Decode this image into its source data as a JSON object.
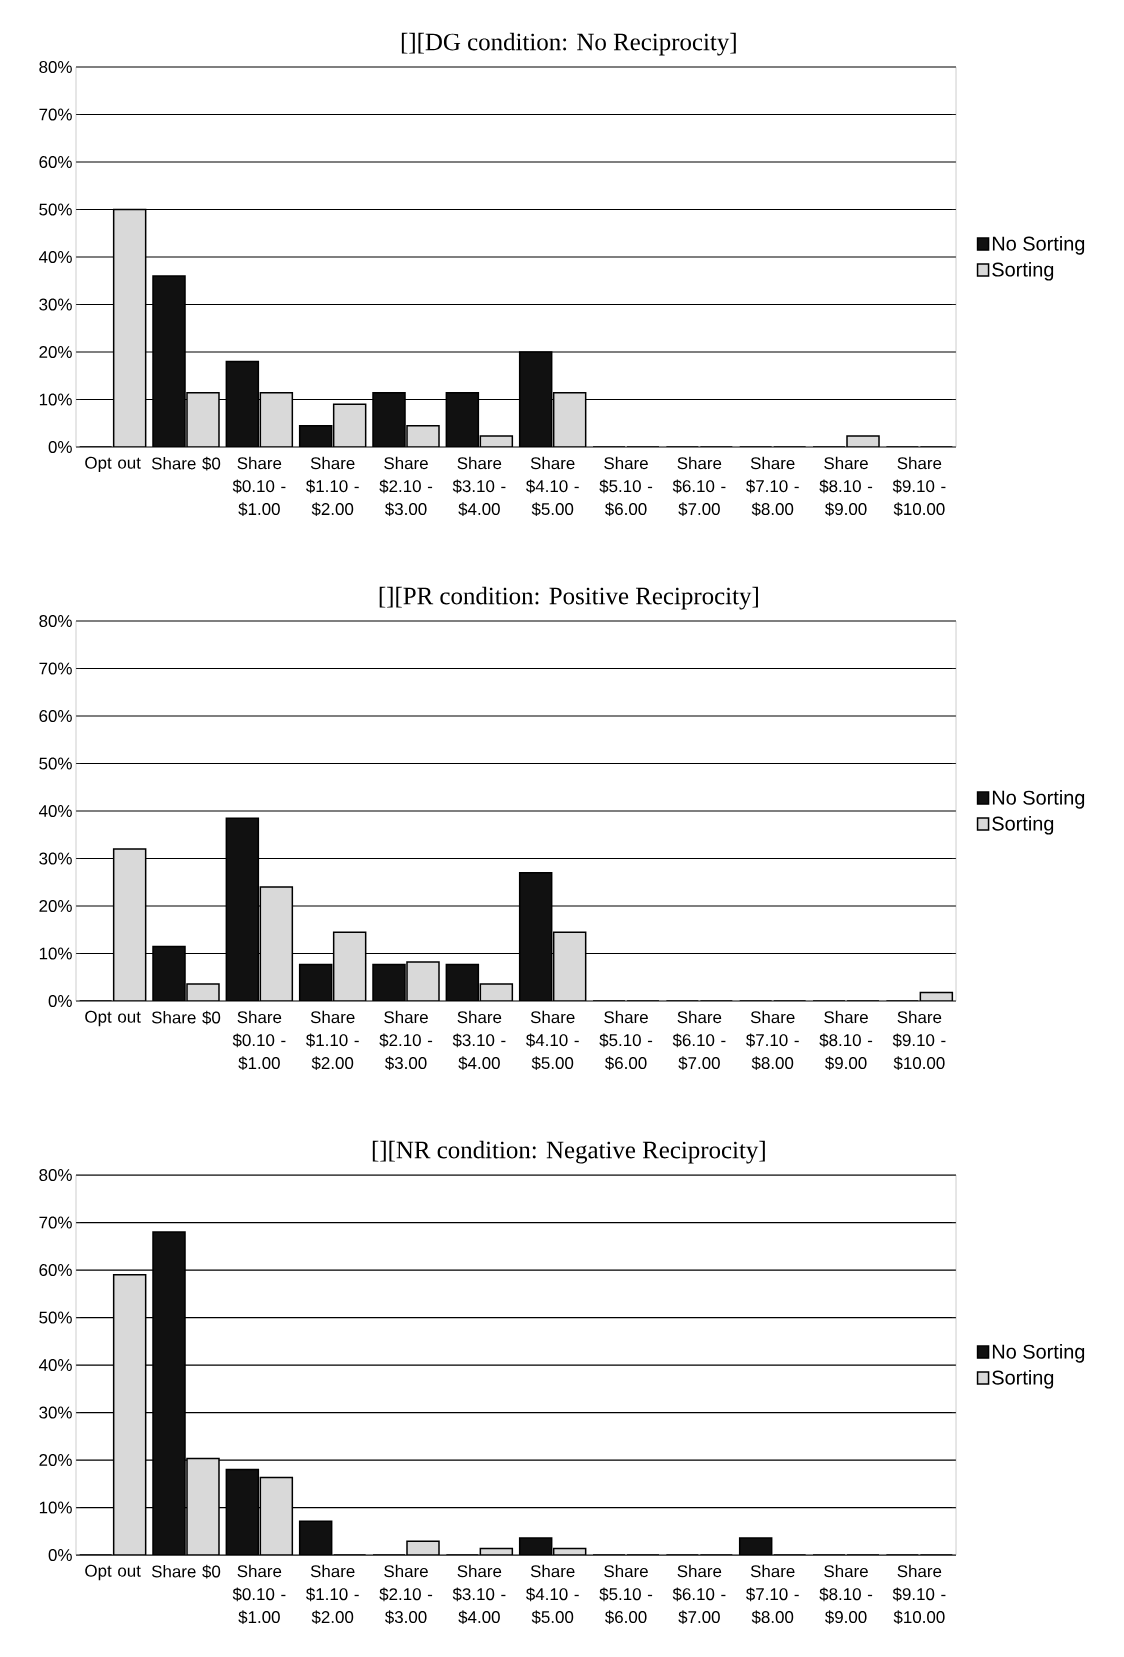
{
  "chart_data": [
    {
      "type": "bar",
      "title": "[][DG condition: No Reciprocity]",
      "categories": [
        "Opt out",
        "Share $0",
        "Share $0.10 - $1.00",
        "Share $1.10 - $2.00",
        "Share $2.10 - $3.00",
        "Share $3.10 - $4.00",
        "Share $4.10 - $5.00",
        "Share $5.10 - $6.00",
        "Share $6.10 - $7.00",
        "Share $7.10 - $8.00",
        "Share $8.10 - $9.00",
        "Share $9.10 - $10.00"
      ],
      "series": [
        {
          "name": "No Sorting",
          "color": "#111111",
          "values": [
            0,
            36,
            18,
            4.5,
            11.4,
            11.4,
            20,
            0,
            0,
            0,
            0,
            0
          ]
        },
        {
          "name": "Sorting",
          "color": "#d9d9d9",
          "values": [
            50,
            11.4,
            11.4,
            9,
            4.5,
            2.3,
            11.4,
            0,
            0,
            0,
            2.3,
            0
          ]
        }
      ],
      "ylim": [
        0,
        80
      ],
      "yticks": [
        {
          "value": 0,
          "label": "0%"
        },
        {
          "value": 10,
          "label": "10%"
        },
        {
          "value": 20,
          "label": "20%"
        },
        {
          "value": 30,
          "label": "30%"
        },
        {
          "value": 40,
          "label": "40%"
        },
        {
          "value": 50,
          "label": "50%"
        },
        {
          "value": 60,
          "label": "60%"
        },
        {
          "value": 70,
          "label": "70%"
        },
        {
          "value": 80,
          "label": "80%"
        }
      ],
      "grid": "y",
      "legend": "right"
    },
    {
      "type": "bar",
      "title": "[][PR condition: Positive Reciprocity]",
      "categories": [
        "Opt out",
        "Share $0",
        "Share $0.10 - $1.00",
        "Share $1.10 - $2.00",
        "Share $2.10 - $3.00",
        "Share $3.10 - $4.00",
        "Share $4.10 - $5.00",
        "Share $5.10 - $6.00",
        "Share $6.10 - $7.00",
        "Share $7.10 - $8.00",
        "Share $8.10 - $9.00",
        "Share $9.10 - $10.00"
      ],
      "series": [
        {
          "name": "No Sorting",
          "color": "#111111",
          "values": [
            0,
            11.5,
            38.5,
            7.7,
            7.7,
            7.7,
            27,
            0,
            0,
            0,
            0,
            0
          ]
        },
        {
          "name": "Sorting",
          "color": "#d9d9d9",
          "values": [
            32,
            3.6,
            24,
            14.5,
            8.2,
            3.6,
            14.5,
            0,
            0,
            0,
            0,
            1.8
          ]
        }
      ],
      "ylim": [
        0,
        80
      ],
      "yticks": [
        {
          "value": 0,
          "label": "0%"
        },
        {
          "value": 10,
          "label": "10%"
        },
        {
          "value": 20,
          "label": "20%"
        },
        {
          "value": 30,
          "label": "30%"
        },
        {
          "value": 40,
          "label": "40%"
        },
        {
          "value": 50,
          "label": "50%"
        },
        {
          "value": 60,
          "label": "60%"
        },
        {
          "value": 70,
          "label": "70%"
        },
        {
          "value": 80,
          "label": "80%"
        }
      ],
      "grid": "y",
      "legend": "right"
    },
    {
      "type": "bar",
      "title": "[][NR condition: Negative Reciprocity]",
      "categories": [
        "Opt out",
        "Share $0",
        "Share $0.10 - $1.00",
        "Share $1.10 - $2.00",
        "Share $2.10 - $3.00",
        "Share $3.10 - $4.00",
        "Share $4.10 - $5.00",
        "Share $5.10 - $6.00",
        "Share $6.10 - $7.00",
        "Share $7.10 - $8.00",
        "Share $8.10 - $9.00",
        "Share $9.10 - $10.00"
      ],
      "series": [
        {
          "name": "No Sorting",
          "color": "#111111",
          "values": [
            0,
            68,
            18,
            7.1,
            0,
            0,
            3.6,
            0,
            0,
            3.6,
            0,
            0
          ]
        },
        {
          "name": "Sorting",
          "color": "#d9d9d9",
          "values": [
            59,
            20.3,
            16.3,
            0,
            2.9,
            1.4,
            1.4,
            0,
            0,
            0,
            0,
            0
          ]
        }
      ],
      "ylim": [
        0,
        80
      ],
      "yticks": [
        {
          "value": 0,
          "label": "0%"
        },
        {
          "value": 10,
          "label": "10%"
        },
        {
          "value": 20,
          "label": "20%"
        },
        {
          "value": 30,
          "label": "30%"
        },
        {
          "value": 40,
          "label": "40%"
        },
        {
          "value": 50,
          "label": "50%"
        },
        {
          "value": 60,
          "label": "60%"
        },
        {
          "value": 70,
          "label": "70%"
        },
        {
          "value": 80,
          "label": "80%"
        }
      ],
      "grid": "y",
      "legend": "right"
    }
  ]
}
